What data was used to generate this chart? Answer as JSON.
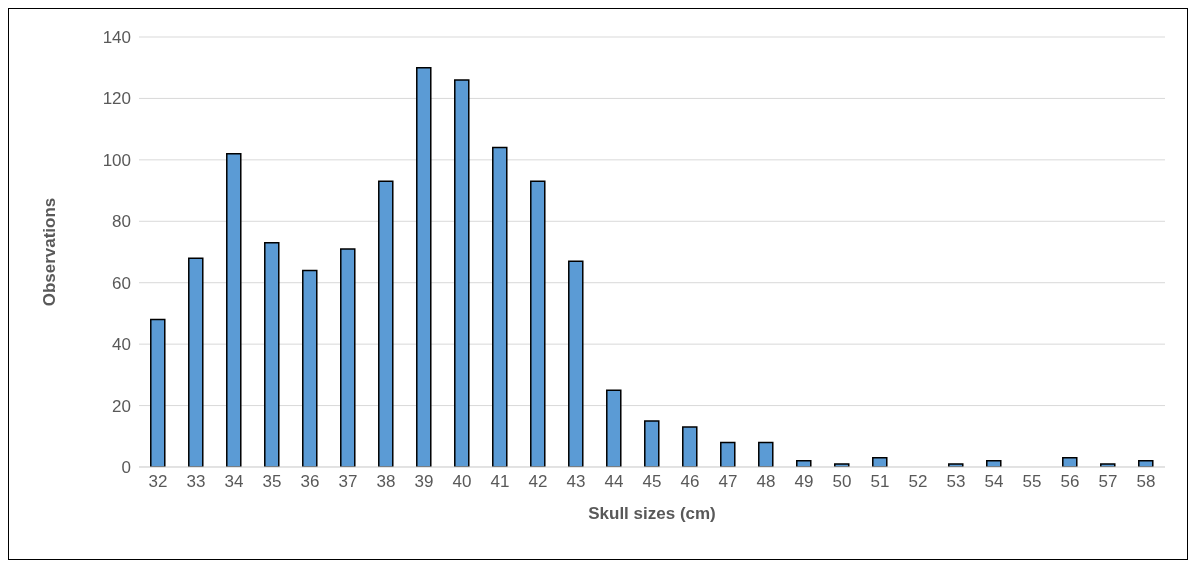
{
  "chart_data": {
    "type": "bar",
    "xlabel": "Skull sizes (cm)",
    "ylabel": "Observations",
    "categories": [
      "32",
      "33",
      "34",
      "35",
      "36",
      "37",
      "38",
      "39",
      "40",
      "41",
      "42",
      "43",
      "44",
      "45",
      "46",
      "47",
      "48",
      "49",
      "50",
      "51",
      "52",
      "53",
      "54",
      "55",
      "56",
      "57",
      "58"
    ],
    "values": [
      48,
      68,
      102,
      73,
      64,
      71,
      93,
      130,
      126,
      104,
      93,
      67,
      25,
      15,
      13,
      8,
      8,
      2,
      1,
      3,
      0,
      1,
      2,
      0,
      3,
      1,
      2
    ],
    "color": "#5b9bd5",
    "ylim": [
      0,
      140
    ],
    "yticks": [
      0,
      20,
      40,
      60,
      80,
      100,
      120,
      140
    ],
    "grid": "y"
  }
}
